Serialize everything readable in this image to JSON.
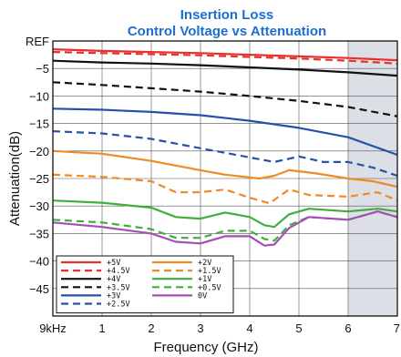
{
  "chart_data": {
    "type": "line",
    "title": "Insertion Loss",
    "subtitle": "Control Voltage vs Attenuation",
    "xlabel": "Frequency (GHz)",
    "ylabel": "Attenuation(dB)",
    "xlim": [
      0,
      7
    ],
    "ylim": [
      -50,
      0
    ],
    "x_ticks": [
      {
        "value": 0,
        "label": "9kHz"
      },
      {
        "value": 1,
        "label": "1"
      },
      {
        "value": 2,
        "label": "2"
      },
      {
        "value": 3,
        "label": "3"
      },
      {
        "value": 4,
        "label": "4"
      },
      {
        "value": 5,
        "label": "5"
      },
      {
        "value": 6,
        "label": "6"
      },
      {
        "value": 7,
        "label": "7"
      }
    ],
    "y_ticks": [
      {
        "value": 0,
        "label": "REF"
      },
      {
        "value": -5,
        "label": "−5"
      },
      {
        "value": -10,
        "label": "−10"
      },
      {
        "value": -15,
        "label": "−15"
      },
      {
        "value": -20,
        "label": "−20"
      },
      {
        "value": -25,
        "label": "−25"
      },
      {
        "value": -30,
        "label": "−30"
      },
      {
        "value": -35,
        "label": "−35"
      },
      {
        "value": -40,
        "label": "−40"
      },
      {
        "value": -45,
        "label": "−45"
      }
    ],
    "grid": true,
    "shaded_region": {
      "x_from": 6,
      "x_to": 7,
      "color": "#dcdfe6"
    },
    "legend_position": "bottom-left",
    "series": [
      {
        "name": "+5V",
        "color": "#e8302c",
        "dash": false,
        "x": [
          0,
          1,
          2,
          3,
          4,
          5,
          6,
          7
        ],
        "y": [
          -1.5,
          -1.8,
          -2.0,
          -2.2,
          -2.5,
          -2.8,
          -3.1,
          -3.5
        ]
      },
      {
        "name": "+4.5V",
        "color": "#e8302c",
        "dash": true,
        "x": [
          0,
          1,
          2,
          3,
          4,
          5,
          6,
          7
        ],
        "y": [
          -2.0,
          -2.2,
          -2.4,
          -2.6,
          -2.9,
          -3.2,
          -3.6,
          -4.1
        ]
      },
      {
        "name": "+4V",
        "color": "#111111",
        "dash": false,
        "x": [
          0,
          1,
          2,
          3,
          4,
          5,
          6,
          7
        ],
        "y": [
          -3.6,
          -3.9,
          -4.1,
          -4.4,
          -4.8,
          -5.2,
          -5.7,
          -6.3
        ]
      },
      {
        "name": "+3.5V",
        "color": "#111111",
        "dash": true,
        "x": [
          0,
          1,
          2,
          3,
          4,
          5,
          6,
          7
        ],
        "y": [
          -7.5,
          -8.0,
          -8.6,
          -9.2,
          -10.0,
          -10.9,
          -12.0,
          -13.7
        ]
      },
      {
        "name": "+3V",
        "color": "#2750a8",
        "dash": false,
        "x": [
          0,
          1,
          2,
          3,
          4,
          5,
          6,
          7
        ],
        "y": [
          -12.3,
          -12.5,
          -12.9,
          -13.5,
          -14.5,
          -15.8,
          -17.5,
          -20.7
        ]
      },
      {
        "name": "+2.5V",
        "color": "#2750a8",
        "dash": true,
        "x": [
          0,
          1,
          2,
          3,
          3.6,
          4.2,
          4.5,
          5,
          5.5,
          6,
          6.5,
          7
        ],
        "y": [
          -16.4,
          -16.8,
          -17.8,
          -19.5,
          -20.5,
          -21.5,
          -22.0,
          -21.0,
          -22.0,
          -22.0,
          -23.0,
          -24.5
        ]
      },
      {
        "name": "+2V",
        "color": "#f08a24",
        "dash": false,
        "x": [
          0,
          1,
          2,
          3,
          3.5,
          4.2,
          4.5,
          4.8,
          5.3,
          6,
          6.5,
          7
        ],
        "y": [
          -20.0,
          -20.5,
          -21.8,
          -23.5,
          -24.3,
          -25.0,
          -24.5,
          -23.5,
          -24.0,
          -25.0,
          -25.5,
          -26.5
        ]
      },
      {
        "name": "+1.5V",
        "color": "#f08a24",
        "dash": true,
        "x": [
          0,
          1,
          2,
          2.5,
          3,
          3.5,
          4,
          4.4,
          4.8,
          5.2,
          6,
          6.6,
          7
        ],
        "y": [
          -24.3,
          -24.7,
          -25.5,
          -27.5,
          -27.5,
          -27.0,
          -28.5,
          -29.5,
          -27.0,
          -28.0,
          -28.3,
          -27.5,
          -29.0
        ]
      },
      {
        "name": "+1V",
        "color": "#3fae3a",
        "dash": false,
        "x": [
          0,
          1,
          2,
          2.5,
          3,
          3.5,
          4,
          4.3,
          4.5,
          4.8,
          5.2,
          6,
          6.6,
          7
        ],
        "y": [
          -29.0,
          -29.4,
          -30.3,
          -32.0,
          -32.3,
          -31.2,
          -32.0,
          -33.5,
          -33.8,
          -31.5,
          -30.5,
          -31.0,
          -30.5,
          -31.0
        ]
      },
      {
        "name": "+0.5V",
        "color": "#3fae3a",
        "dash": true,
        "x": [
          0,
          1,
          2,
          2.5,
          3,
          3.5,
          4,
          4.3,
          4.5,
          4.8,
          5.2,
          6,
          6.6,
          7
        ],
        "y": [
          -32.5,
          -33.0,
          -34.2,
          -35.8,
          -35.8,
          -34.5,
          -34.5,
          -36.0,
          -36.3,
          -33.5,
          -32.0,
          -32.5,
          -31.0,
          -32.0
        ]
      },
      {
        "name": "0V",
        "color": "#a44fb4",
        "dash": false,
        "x": [
          0,
          1,
          2,
          2.5,
          3,
          3.5,
          4,
          4.3,
          4.5,
          4.8,
          5.2,
          6,
          6.6,
          7
        ],
        "y": [
          -33.0,
          -33.8,
          -35.0,
          -36.5,
          -36.8,
          -35.5,
          -35.5,
          -37.2,
          -37.0,
          -34.0,
          -32.0,
          -32.5,
          -31.0,
          -32.0
        ]
      }
    ]
  }
}
